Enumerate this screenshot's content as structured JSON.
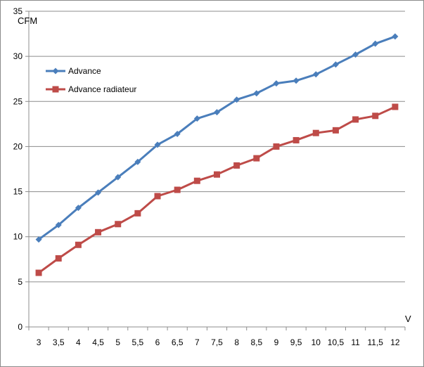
{
  "chart_data": {
    "type": "line",
    "ylabel": "CFM",
    "xlabel": "V",
    "ylim": [
      0,
      35
    ],
    "y_ticks": [
      0,
      5,
      10,
      15,
      20,
      25,
      30,
      35
    ],
    "x": [
      "3",
      "3,5",
      "4",
      "4,5",
      "5",
      "5,5",
      "6",
      "6,5",
      "7",
      "7,5",
      "8",
      "8,5",
      "9",
      "9,5",
      "10",
      "10,5",
      "11",
      "11,5",
      "12"
    ],
    "grid": true,
    "legend_position": "top-left",
    "series": [
      {
        "name": "Advance",
        "color": "#4a7ebb",
        "marker": "diamond",
        "values": [
          9.7,
          11.3,
          13.2,
          14.9,
          16.6,
          18.3,
          20.2,
          21.4,
          23.1,
          23.8,
          25.2,
          25.9,
          27.0,
          27.3,
          28.0,
          29.1,
          30.2,
          31.4,
          32.2
        ]
      },
      {
        "name": "Advance radiateur",
        "color": "#be4b48",
        "marker": "square",
        "values": [
          6.0,
          7.6,
          9.1,
          10.5,
          11.4,
          12.6,
          14.5,
          15.2,
          16.2,
          16.9,
          17.9,
          18.7,
          20.0,
          20.7,
          21.5,
          21.8,
          23.0,
          23.4,
          24.4
        ]
      }
    ]
  }
}
